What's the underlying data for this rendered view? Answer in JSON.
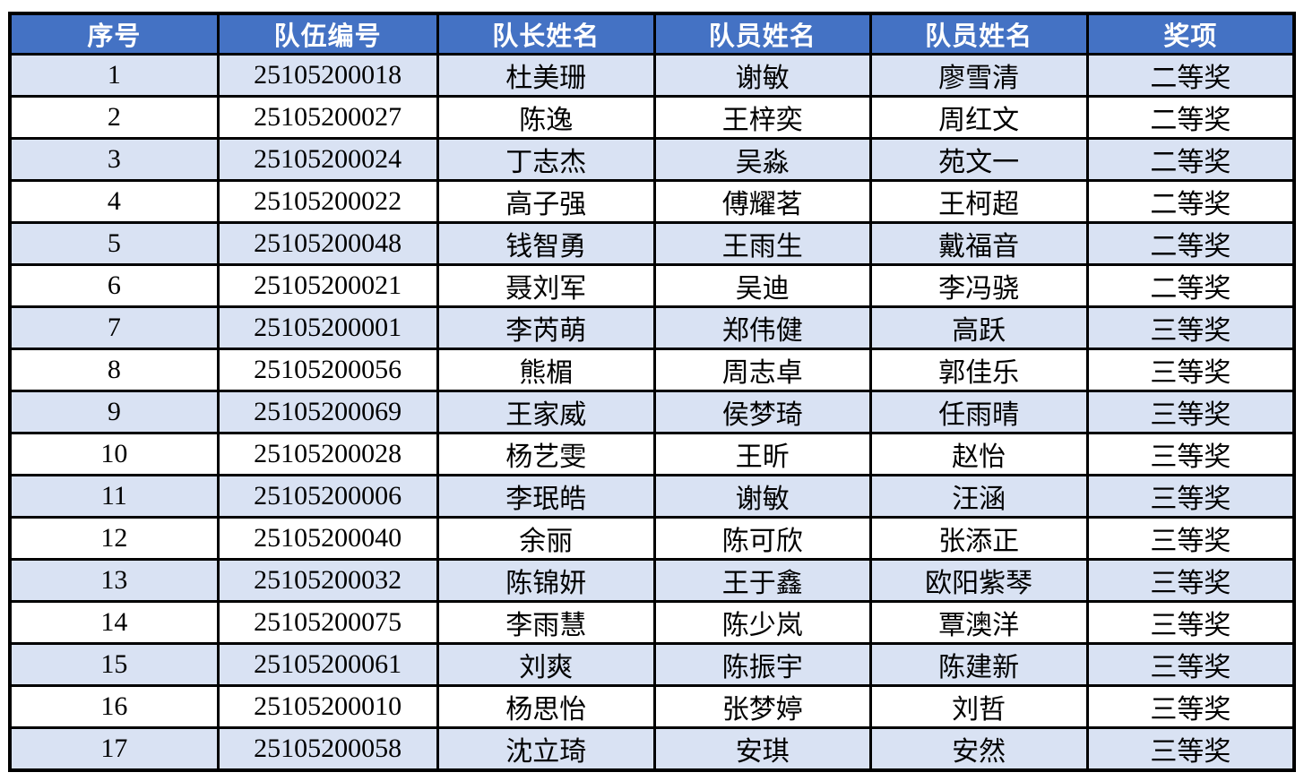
{
  "colors": {
    "header_bg": "#4472C4",
    "header_text": "#FFFFFF",
    "band_bg": "#D9E2F3",
    "plain_bg": "#FFFFFF",
    "border": "#000000",
    "body_text": "#000000"
  },
  "table": {
    "columns": [
      "序号",
      "队伍编号",
      "队长姓名",
      "队员姓名",
      "队员姓名",
      "奖项"
    ],
    "column_widths_pct": [
      16.2,
      17.1,
      16.9,
      16.8,
      16.9,
      16.1
    ],
    "rows": [
      [
        "1",
        "25105200018",
        "杜美珊",
        "谢敏",
        "廖雪清",
        "二等奖"
      ],
      [
        "2",
        "25105200027",
        "陈逸",
        "王梓奕",
        "周红文",
        "二等奖"
      ],
      [
        "3",
        "25105200024",
        "丁志杰",
        "吴淼",
        "苑文一",
        "二等奖"
      ],
      [
        "4",
        "25105200022",
        "高子强",
        "傅耀茗",
        "王柯超",
        "二等奖"
      ],
      [
        "5",
        "25105200048",
        "钱智勇",
        "王雨生",
        "戴福音",
        "二等奖"
      ],
      [
        "6",
        "25105200021",
        "聂刘军",
        "吴迪",
        "李冯骁",
        "二等奖"
      ],
      [
        "7",
        "25105200001",
        "李芮萌",
        "郑伟健",
        "高跃",
        "三等奖"
      ],
      [
        "8",
        "25105200056",
        "熊楣",
        "周志卓",
        "郭佳乐",
        "三等奖"
      ],
      [
        "9",
        "25105200069",
        "王家威",
        "侯梦琦",
        "任雨晴",
        "三等奖"
      ],
      [
        "10",
        "25105200028",
        "杨艺雯",
        "王昕",
        "赵怡",
        "三等奖"
      ],
      [
        "11",
        "25105200006",
        "李珉皓",
        "谢敏",
        "汪涵",
        "三等奖"
      ],
      [
        "12",
        "25105200040",
        "余丽",
        "陈可欣",
        "张添正",
        "三等奖"
      ],
      [
        "13",
        "25105200032",
        "陈锦妍",
        "王于鑫",
        "欧阳紫琴",
        "三等奖"
      ],
      [
        "14",
        "25105200075",
        "李雨慧",
        "陈少岚",
        "覃澳洋",
        "三等奖"
      ],
      [
        "15",
        "25105200061",
        "刘爽",
        "陈振宇",
        "陈建新",
        "三等奖"
      ],
      [
        "16",
        "25105200010",
        "杨思怡",
        "张梦婷",
        "刘哲",
        "三等奖"
      ],
      [
        "17",
        "25105200058",
        "沈立琦",
        "安琪",
        "安然",
        "三等奖"
      ]
    ]
  }
}
